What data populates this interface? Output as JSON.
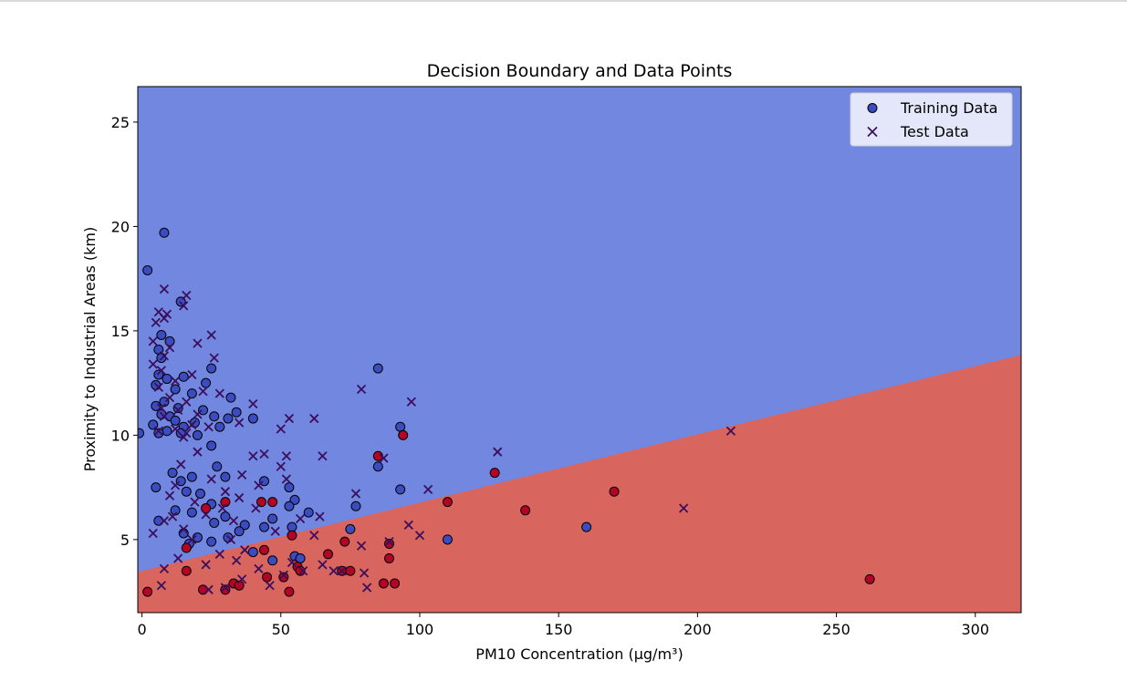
{
  "chart_data": {
    "type": "scatter",
    "title": "Decision Boundary and Data Points",
    "xlabel": "PM10 Concentration (μg/m³)",
    "ylabel": "Proximity to Industrial Areas (km)",
    "xlim": [
      -1.5,
      316.5
    ],
    "ylim": [
      1.5,
      26.7
    ],
    "xticks": [
      0,
      50,
      100,
      150,
      200,
      250,
      300
    ],
    "yticks": [
      5,
      10,
      15,
      20,
      25
    ],
    "grid": false,
    "legend_position": "top-right",
    "boundary": {
      "description_points": [
        [
          -1.5,
          3.45
        ],
        [
          316.5,
          13.85
        ]
      ],
      "upper_region_color": "#7287e0",
      "lower_region_color": "#d8665f"
    },
    "colors": {
      "class0": "#3b4cc0",
      "class1": "#b40426",
      "test": "#3b0f5c"
    },
    "series": [
      {
        "name": "Training Data",
        "marker": "circle",
        "points": [
          [
            8,
            19.7,
            0
          ],
          [
            2,
            17.9,
            0
          ],
          [
            14,
            16.4,
            0
          ],
          [
            7,
            14.8,
            0
          ],
          [
            10,
            14.5,
            0
          ],
          [
            6,
            14.1,
            0
          ],
          [
            7,
            13.7,
            0
          ],
          [
            25,
            13.2,
            0
          ],
          [
            85,
            13.2,
            0
          ],
          [
            6,
            12.9,
            0
          ],
          [
            15,
            12.8,
            0
          ],
          [
            9,
            12.7,
            0
          ],
          [
            23,
            12.5,
            0
          ],
          [
            5,
            12.4,
            0
          ],
          [
            12,
            12.2,
            0
          ],
          [
            18,
            12.0,
            0
          ],
          [
            32,
            11.8,
            0
          ],
          [
            8,
            11.6,
            0
          ],
          [
            5,
            11.4,
            0
          ],
          [
            13,
            11.3,
            0
          ],
          [
            22,
            11.2,
            0
          ],
          [
            34,
            11.1,
            0
          ],
          [
            7,
            11.0,
            0
          ],
          [
            10,
            10.9,
            0
          ],
          [
            26,
            10.9,
            0
          ],
          [
            31,
            10.8,
            0
          ],
          [
            40,
            10.8,
            0
          ],
          [
            12,
            10.7,
            0
          ],
          [
            19,
            10.6,
            0
          ],
          [
            4,
            10.5,
            0
          ],
          [
            15,
            10.4,
            0
          ],
          [
            28,
            10.4,
            0
          ],
          [
            93,
            10.4,
            0
          ],
          [
            9,
            10.2,
            0
          ],
          [
            -1,
            10.1,
            0
          ],
          [
            6,
            10.1,
            0
          ],
          [
            14,
            10.1,
            0
          ],
          [
            20,
            10.0,
            0
          ],
          [
            25,
            9.5,
            0
          ],
          [
            27,
            8.5,
            0
          ],
          [
            85,
            8.5,
            0
          ],
          [
            11,
            8.2,
            0
          ],
          [
            18,
            8.0,
            0
          ],
          [
            30,
            8.0,
            0
          ],
          [
            14,
            7.8,
            0
          ],
          [
            44,
            7.8,
            0
          ],
          [
            5,
            7.5,
            0
          ],
          [
            53,
            7.5,
            0
          ],
          [
            93,
            7.4,
            0
          ],
          [
            16,
            7.3,
            0
          ],
          [
            21,
            7.2,
            0
          ],
          [
            55,
            6.9,
            0
          ],
          [
            25,
            6.7,
            0
          ],
          [
            53,
            6.6,
            0
          ],
          [
            77,
            6.6,
            0
          ],
          [
            12,
            6.4,
            0
          ],
          [
            18,
            6.3,
            0
          ],
          [
            60,
            6.3,
            0
          ],
          [
            30,
            6.1,
            0
          ],
          [
            47,
            6.0,
            0
          ],
          [
            6,
            5.9,
            0
          ],
          [
            26,
            5.8,
            0
          ],
          [
            37,
            5.7,
            0
          ],
          [
            44,
            5.6,
            0
          ],
          [
            54,
            5.6,
            0
          ],
          [
            160,
            5.6,
            0
          ],
          [
            35,
            5.4,
            0
          ],
          [
            75,
            5.5,
            0
          ],
          [
            15,
            5.3,
            0
          ],
          [
            20,
            5.1,
            0
          ],
          [
            31,
            5.1,
            0
          ],
          [
            110,
            5.0,
            0
          ],
          [
            25,
            4.9,
            0
          ],
          [
            17,
            4.8,
            0
          ],
          [
            40,
            4.4,
            0
          ],
          [
            55,
            4.2,
            0
          ],
          [
            57,
            4.1,
            0
          ],
          [
            47,
            4.0,
            0
          ],
          [
            85,
            9.0,
            1
          ],
          [
            94,
            10.0,
            1
          ],
          [
            127,
            8.2,
            1
          ],
          [
            110,
            6.8,
            1
          ],
          [
            170,
            7.3,
            1
          ],
          [
            138,
            6.4,
            1
          ],
          [
            30,
            6.8,
            1
          ],
          [
            43,
            6.8,
            1
          ],
          [
            47,
            6.8,
            1
          ],
          [
            23,
            6.5,
            1
          ],
          [
            54,
            5.2,
            1
          ],
          [
            73,
            4.9,
            1
          ],
          [
            89,
            4.8,
            1
          ],
          [
            16,
            4.6,
            1
          ],
          [
            44,
            4.5,
            1
          ],
          [
            67,
            4.3,
            1
          ],
          [
            89,
            4.1,
            1
          ],
          [
            56,
            3.7,
            1
          ],
          [
            16,
            3.5,
            1
          ],
          [
            57,
            3.5,
            1
          ],
          [
            72,
            3.5,
            1
          ],
          [
            75,
            3.5,
            1
          ],
          [
            45,
            3.2,
            1
          ],
          [
            51,
            3.2,
            1
          ],
          [
            262,
            3.1,
            1
          ],
          [
            87,
            2.9,
            1
          ],
          [
            91,
            2.9,
            1
          ],
          [
            33,
            2.9,
            1
          ],
          [
            35,
            2.8,
            1
          ],
          [
            2,
            2.5,
            1
          ],
          [
            30,
            2.6,
            1
          ],
          [
            53,
            2.5,
            1
          ],
          [
            22,
            2.6,
            1
          ]
        ]
      },
      {
        "name": "Test Data",
        "marker": "x",
        "points": [
          [
            8,
            17.0
          ],
          [
            16,
            16.7
          ],
          [
            15,
            16.2
          ],
          [
            6,
            15.9
          ],
          [
            8,
            15.6
          ],
          [
            5,
            15.4
          ],
          [
            9,
            15.8
          ],
          [
            25,
            14.8
          ],
          [
            4,
            14.5
          ],
          [
            20,
            14.4
          ],
          [
            10,
            14.2
          ],
          [
            8,
            13.8
          ],
          [
            26,
            13.7
          ],
          [
            7,
            13.1
          ],
          [
            4,
            13.4
          ],
          [
            18,
            12.9
          ],
          [
            12,
            12.6
          ],
          [
            6,
            12.3
          ],
          [
            79,
            12.2
          ],
          [
            22,
            12.1
          ],
          [
            28,
            12.0
          ],
          [
            10,
            11.8
          ],
          [
            16,
            11.6
          ],
          [
            97,
            11.6
          ],
          [
            40,
            11.5
          ],
          [
            7,
            11.3
          ],
          [
            13,
            11.2
          ],
          [
            20,
            11.0
          ],
          [
            8,
            10.9
          ],
          [
            53,
            10.8
          ],
          [
            62,
            10.8
          ],
          [
            35,
            10.6
          ],
          [
            18,
            10.5
          ],
          [
            24,
            10.4
          ],
          [
            12,
            10.3
          ],
          [
            50,
            10.3
          ],
          [
            6,
            10.2
          ],
          [
            16,
            10.1
          ],
          [
            212,
            10.2
          ],
          [
            15,
            9.9
          ],
          [
            128,
            9.2
          ],
          [
            40,
            9.0
          ],
          [
            44,
            9.1
          ],
          [
            20,
            9.2
          ],
          [
            52,
            9.0
          ],
          [
            65,
            9.0
          ],
          [
            87,
            8.9
          ],
          [
            14,
            8.6
          ],
          [
            50,
            8.5
          ],
          [
            36,
            8.1
          ],
          [
            25,
            7.9
          ],
          [
            52,
            7.9
          ],
          [
            12,
            7.6
          ],
          [
            42,
            7.6
          ],
          [
            30,
            7.3
          ],
          [
            77,
            7.2
          ],
          [
            103,
            7.4
          ],
          [
            10,
            7.1
          ],
          [
            35,
            7.0
          ],
          [
            19,
            6.8
          ],
          [
            29,
            6.5
          ],
          [
            41,
            6.5
          ],
          [
            195,
            6.5
          ],
          [
            11,
            6.1
          ],
          [
            23,
            6.2
          ],
          [
            57,
            6.0
          ],
          [
            64,
            6.1
          ],
          [
            8,
            5.9
          ],
          [
            33,
            5.9
          ],
          [
            96,
            5.7
          ],
          [
            4,
            5.3
          ],
          [
            15,
            5.5
          ],
          [
            48,
            5.4
          ],
          [
            62,
            5.2
          ],
          [
            100,
            5.2
          ],
          [
            18,
            5.0
          ],
          [
            32,
            5.0
          ],
          [
            79,
            4.7
          ],
          [
            89,
            4.9
          ],
          [
            37,
            4.5
          ],
          [
            28,
            4.3
          ],
          [
            13,
            4.1
          ],
          [
            34,
            4.0
          ],
          [
            65,
            3.8
          ],
          [
            54,
            3.9
          ],
          [
            23,
            3.8
          ],
          [
            8,
            3.6
          ],
          [
            42,
            3.6
          ],
          [
            72,
            3.5
          ],
          [
            58,
            3.5
          ],
          [
            69,
            3.5
          ],
          [
            36,
            3.1
          ],
          [
            51,
            3.3
          ],
          [
            80,
            3.4
          ],
          [
            30,
            2.7
          ],
          [
            24,
            2.6
          ],
          [
            7,
            2.8
          ],
          [
            46,
            2.8
          ],
          [
            81,
            2.7
          ]
        ]
      }
    ]
  }
}
